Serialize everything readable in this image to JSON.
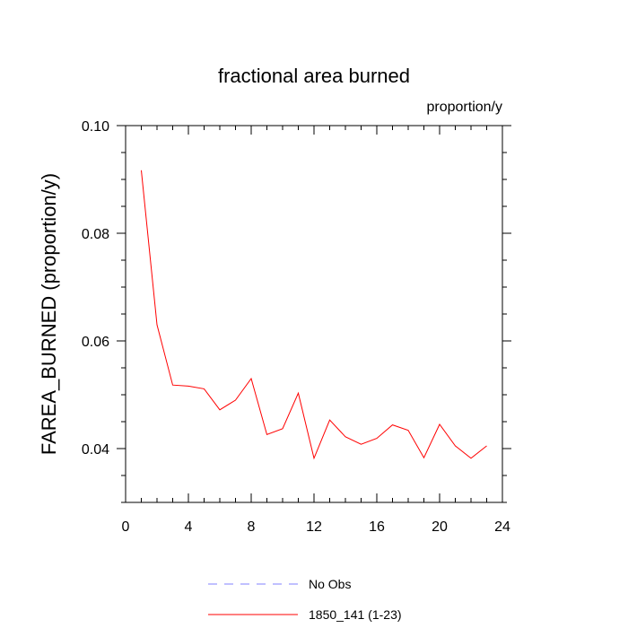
{
  "chart_data": {
    "type": "line",
    "title": "fractional area burned",
    "units_label": "proportion/y",
    "xlabel": "",
    "ylabel": "FAREA_BURNED  (proportion/y)",
    "xlim": [
      0,
      24
    ],
    "ylim": [
      0.03,
      0.1
    ],
    "x_ticks": [
      0,
      4,
      8,
      12,
      16,
      20,
      24
    ],
    "x_tick_labels": [
      "0",
      "4",
      "8",
      "12",
      "16",
      "20",
      "24"
    ],
    "y_ticks": [
      0.04,
      0.06,
      0.08,
      0.1
    ],
    "y_tick_labels": [
      "0.04",
      "0.06",
      "0.08",
      "0.10"
    ],
    "grid": false,
    "legend_position": "bottom",
    "series": [
      {
        "name": "No Obs",
        "color": "#8080ff",
        "dash": "dashed",
        "x": [],
        "y": []
      },
      {
        "name": "1850_141 (1-23)",
        "color": "#ff0000",
        "dash": "solid",
        "x": [
          1,
          2,
          3,
          4,
          5,
          6,
          7,
          8,
          9,
          10,
          11,
          12,
          13,
          14,
          15,
          16,
          17,
          18,
          19,
          20,
          21,
          22,
          23
        ],
        "y": [
          0.0917,
          0.063,
          0.0518,
          0.0516,
          0.0511,
          0.0472,
          0.049,
          0.053,
          0.0426,
          0.0437,
          0.0503,
          0.0382,
          0.0453,
          0.0422,
          0.0408,
          0.0419,
          0.0444,
          0.0434,
          0.0383,
          0.0445,
          0.0405,
          0.0382,
          0.0405
        ]
      }
    ]
  }
}
